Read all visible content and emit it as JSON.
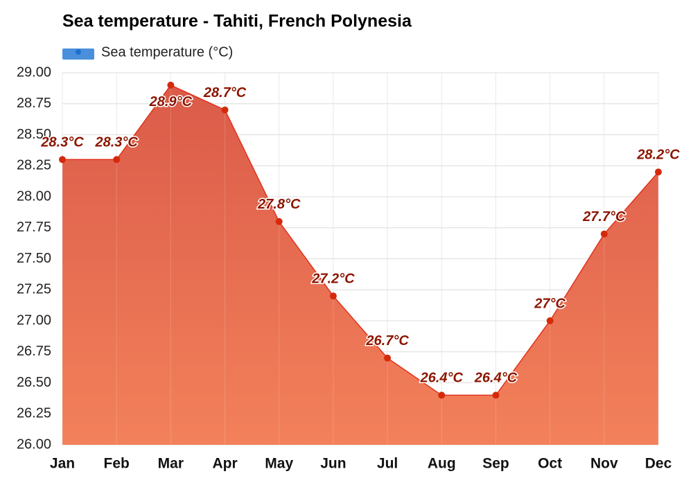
{
  "chart_data": {
    "type": "area",
    "title": "Sea temperature - Tahiti, French Polynesia",
    "categories": [
      "Jan",
      "Feb",
      "Mar",
      "Apr",
      "May",
      "Jun",
      "Jul",
      "Aug",
      "Sep",
      "Oct",
      "Nov",
      "Dec"
    ],
    "series": [
      {
        "name": "Sea temperature (°C)",
        "color": "#e0321a",
        "values": [
          28.3,
          28.3,
          28.9,
          28.7,
          27.8,
          27.2,
          26.7,
          26.4,
          26.4,
          27.0,
          27.7,
          28.2
        ],
        "value_labels": [
          "28.3°C",
          "28.3°C",
          "28.9°C",
          "28.7°C",
          "27.8°C",
          "27.2°C",
          "26.7°C",
          "26.4°C",
          "26.4°C",
          "27°C",
          "27.7°C",
          "28.2°C"
        ]
      }
    ],
    "ylim": [
      26,
      29
    ],
    "yticks": [
      {
        "value": 26,
        "label": "26.00"
      },
      {
        "value": 26.25,
        "label": "26.25"
      },
      {
        "value": 26.5,
        "label": "26.50"
      },
      {
        "value": 26.75,
        "label": "26.75"
      },
      {
        "value": 27,
        "label": "27.00"
      },
      {
        "value": 27.25,
        "label": "27.25"
      },
      {
        "value": 27.5,
        "label": "27.50"
      },
      {
        "value": 27.75,
        "label": "27.75"
      },
      {
        "value": 28,
        "label": "28.00"
      },
      {
        "value": 28.25,
        "label": "28.25"
      },
      {
        "value": 28.5,
        "label": "28.50"
      },
      {
        "value": 28.75,
        "label": "28.75"
      },
      {
        "value": 29,
        "label": "29.00"
      }
    ],
    "grid": true
  }
}
